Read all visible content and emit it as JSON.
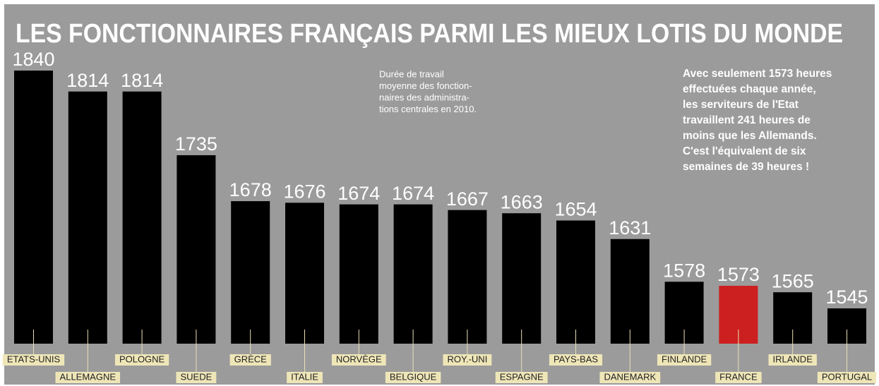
{
  "chart_data": {
    "type": "bar",
    "title": "LES FONCTIONNAIRES FRANÇAIS PARMI LES MIEUX LOTIS DU MONDE",
    "note": [
      "Durée de travail",
      "moyenne des fonction-",
      "naires des administra-",
      "tions centrales en 2010."
    ],
    "annotation": [
      "Avec seulement 1573 heures",
      "effectuées chaque année,",
      "les serviteurs de l'Etat",
      "travaillent 241 heures de",
      "moins que les Allemands.",
      "C'est l'équivalent de six",
      "semaines de 39 heures !"
    ],
    "categories": [
      "ETATS-UNIS",
      "ALLEMAGNE",
      "POLOGNE",
      "SUEDE",
      "GRÈCE",
      "ITALIE",
      "NORVÈGE",
      "BELGIQUE",
      "ROY.-UNI",
      "ESPAGNE",
      "PAYS-BAS",
      "DANEMARK",
      "FINLANDE",
      "FRANCE",
      "IRLANDE",
      "PORTUGAL"
    ],
    "values": [
      1840,
      1814,
      1814,
      1735,
      1678,
      1676,
      1674,
      1674,
      1667,
      1663,
      1654,
      1631,
      1578,
      1573,
      1565,
      1545
    ],
    "colors": [
      "#000000",
      "#000000",
      "#000000",
      "#000000",
      "#000000",
      "#000000",
      "#000000",
      "#000000",
      "#000000",
      "#000000",
      "#000000",
      "#000000",
      "#000000",
      "#cc1f1f",
      "#000000",
      "#000000"
    ]
  }
}
